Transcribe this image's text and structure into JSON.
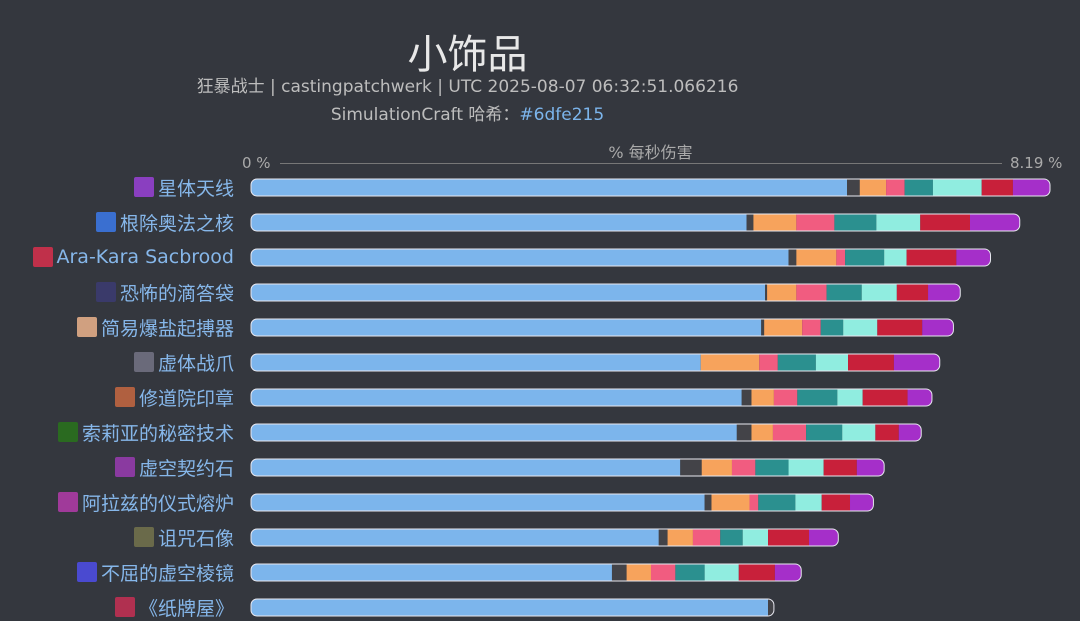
{
  "header": {
    "title": "小饰品",
    "subtitle": "狂暴战士 | castingpatchwerk | UTC 2025-08-07 06:32:51.066216",
    "hash_label": "SimulationCraft 哈希：",
    "hash_value": "#6dfe215"
  },
  "chart_data": {
    "type": "bar",
    "orientation": "horizontal",
    "stacked": true,
    "title": "小饰品",
    "xlabel": "% 每秒伤害",
    "xlim": [
      0,
      8.19
    ],
    "tick_labels": [
      "0 %",
      "8.19 %"
    ],
    "segment_colors": [
      "#7cb5ec",
      "#434348",
      "#f7a35c",
      "#f15c80",
      "#2b908f",
      "#90ede0",
      "#c8203a",
      "#a52fc9"
    ],
    "categories": [
      "星体天线",
      "根除奥法之核",
      "Ara-Kara Sacbrood",
      "恐怖的滴答袋",
      "简易爆盐起搏器",
      "虚体战爪",
      "修道院印章",
      "索莉亚的秘密技术",
      "虚空契约石",
      "阿拉兹的仪式熔炉",
      "诅咒石像",
      "不屈的虚空棱镜",
      "《纸牌屋》"
    ],
    "icon_colors": [
      "#8a3fc0",
      "#3a6fd0",
      "#c0304a",
      "#3a3a6a",
      "#d0a080",
      "#6a6a7a",
      "#b06040",
      "#2a6a20",
      "#8a3aa0",
      "#a03a9a",
      "#6a6a4a",
      "#4a4ad0",
      "#b03050"
    ],
    "segments": [
      [
        6.11,
        0.13,
        0.27,
        0.19,
        0.29,
        0.5,
        0.32,
        0.38
      ],
      [
        5.08,
        0.07,
        0.44,
        0.39,
        0.43,
        0.45,
        0.51,
        0.51
      ],
      [
        5.51,
        0.08,
        0.41,
        0.09,
        0.4,
        0.23,
        0.51,
        0.35
      ],
      [
        5.27,
        0.02,
        0.3,
        0.31,
        0.36,
        0.36,
        0.32,
        0.33
      ],
      [
        5.23,
        0.03,
        0.39,
        0.19,
        0.23,
        0.35,
        0.46,
        0.32
      ],
      [
        4.61,
        0.0,
        0.6,
        0.19,
        0.39,
        0.33,
        0.47,
        0.47
      ],
      [
        5.03,
        0.1,
        0.23,
        0.24,
        0.41,
        0.26,
        0.46,
        0.25
      ],
      [
        4.98,
        0.15,
        0.22,
        0.34,
        0.37,
        0.34,
        0.24,
        0.23
      ],
      [
        4.4,
        0.22,
        0.31,
        0.24,
        0.34,
        0.36,
        0.34,
        0.28
      ],
      [
        4.65,
        0.07,
        0.39,
        0.09,
        0.38,
        0.27,
        0.29,
        0.24
      ],
      [
        4.18,
        0.09,
        0.26,
        0.28,
        0.23,
        0.26,
        0.42,
        0.3
      ],
      [
        3.7,
        0.15,
        0.25,
        0.25,
        0.3,
        0.35,
        0.37,
        0.27
      ],
      [
        5.3,
        0.06
      ]
    ]
  }
}
